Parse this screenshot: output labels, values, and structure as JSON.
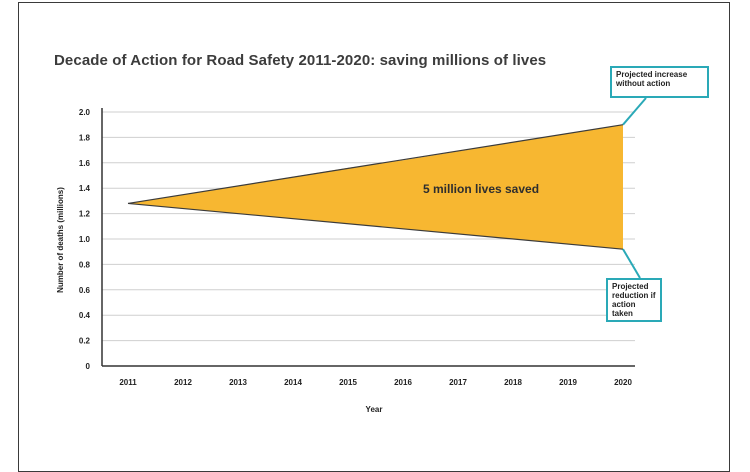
{
  "chart_data": {
    "type": "area",
    "title": "Decade of Action for Road Safety 2011-2020: saving millions of lives",
    "xlabel": "Year",
    "ylabel": "Number of deaths (millions)",
    "ylim": [
      0,
      2.0
    ],
    "x": [
      "2011",
      "2012",
      "2013",
      "2014",
      "2015",
      "2016",
      "2017",
      "2018",
      "2019",
      "2020"
    ],
    "yticks": [
      "0",
      "0.2",
      "0.4",
      "0.6",
      "0.8",
      "1.0",
      "1.2",
      "1.4",
      "1.6",
      "1.8",
      "2.0"
    ],
    "series": [
      {
        "key": "upper",
        "values": [
          1.28,
          1.35,
          1.42,
          1.49,
          1.56,
          1.62,
          1.69,
          1.76,
          1.83,
          1.9
        ]
      },
      {
        "key": "lower",
        "values": [
          1.28,
          1.24,
          1.2,
          1.16,
          1.12,
          1.08,
          1.04,
          1.0,
          0.96,
          0.92
        ]
      }
    ],
    "fill_color": "#f7b731",
    "grid": true,
    "annotations": {
      "area_label": "5 million lives saved",
      "top_callout": "Projected increase without action",
      "bottom_callout": "Projected reduction if action taken"
    },
    "callout_border_color": "#2aa9b7"
  }
}
